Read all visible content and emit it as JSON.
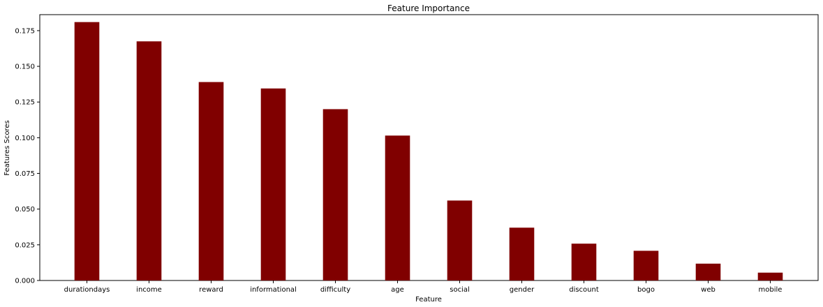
{
  "chart_data": {
    "type": "bar",
    "title": "Feature Importance",
    "xlabel": "Feature",
    "ylabel": "Features Scores",
    "categories": [
      "durationdays",
      "income",
      "reward",
      "informational",
      "difficulty",
      "age",
      "social",
      "gender",
      "discount",
      "bogo",
      "web",
      "mobile"
    ],
    "values": [
      0.181,
      0.1675,
      0.139,
      0.1345,
      0.12,
      0.1015,
      0.056,
      0.037,
      0.0258,
      0.0208,
      0.0118,
      0.0055
    ],
    "ylim": [
      0,
      0.1862
    ],
    "yticks": [
      "0.000",
      "0.025",
      "0.050",
      "0.075",
      "0.100",
      "0.125",
      "0.150",
      "0.175"
    ],
    "grid": false,
    "legend": false,
    "bar_color": "#800000"
  }
}
